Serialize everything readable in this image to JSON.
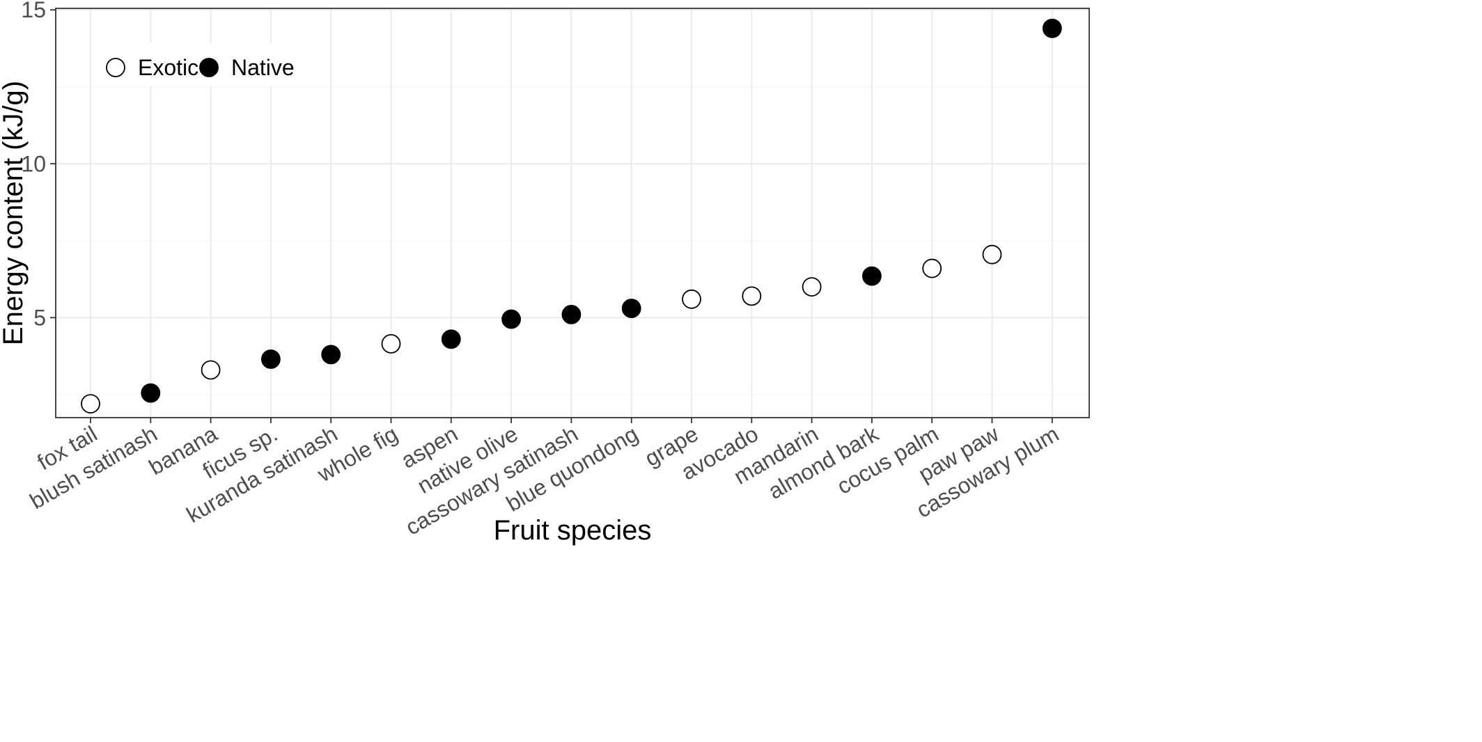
{
  "chart_data": {
    "type": "scatter",
    "xlabel": "Fruit species",
    "ylabel": "Energy content (kJ/g)",
    "ylim": [
      1.75,
      15.05
    ],
    "yticks": [
      5,
      10,
      15
    ],
    "grid": true,
    "legend_position": "top-left",
    "categories": [
      "fox tail",
      "blush satinash",
      "banana",
      "ficus sp.",
      "kuranda satinash",
      "whole fig",
      "aspen",
      "native olive",
      "cassowary satinash",
      "blue quondong",
      "grape",
      "avocado",
      "mandarin",
      "almond bark",
      "cocus palm",
      "paw paw",
      "cassowary plum"
    ],
    "series": [
      {
        "name": "Exotic",
        "fill": "#ffffff",
        "points": [
          {
            "x": "fox tail",
            "y": 2.2
          },
          {
            "x": "banana",
            "y": 3.3
          },
          {
            "x": "whole fig",
            "y": 4.15
          },
          {
            "x": "grape",
            "y": 5.6
          },
          {
            "x": "avocado",
            "y": 5.7
          },
          {
            "x": "mandarin",
            "y": 6.0
          },
          {
            "x": "cocus palm",
            "y": 6.6
          },
          {
            "x": "paw paw",
            "y": 7.05
          }
        ]
      },
      {
        "name": "Native",
        "fill": "#000000",
        "points": [
          {
            "x": "blush satinash",
            "y": 2.55
          },
          {
            "x": "ficus sp.",
            "y": 3.65
          },
          {
            "x": "kuranda satinash",
            "y": 3.8
          },
          {
            "x": "aspen",
            "y": 4.3
          },
          {
            "x": "native olive",
            "y": 4.95
          },
          {
            "x": "cassowary satinash",
            "y": 5.1
          },
          {
            "x": "blue quondong",
            "y": 5.3
          },
          {
            "x": "almond bark",
            "y": 6.35
          },
          {
            "x": "cassowary plum",
            "y": 14.4
          }
        ]
      }
    ],
    "legend": [
      {
        "label": "Exotic",
        "fill": "#ffffff"
      },
      {
        "label": "Native",
        "fill": "#000000"
      }
    ]
  }
}
